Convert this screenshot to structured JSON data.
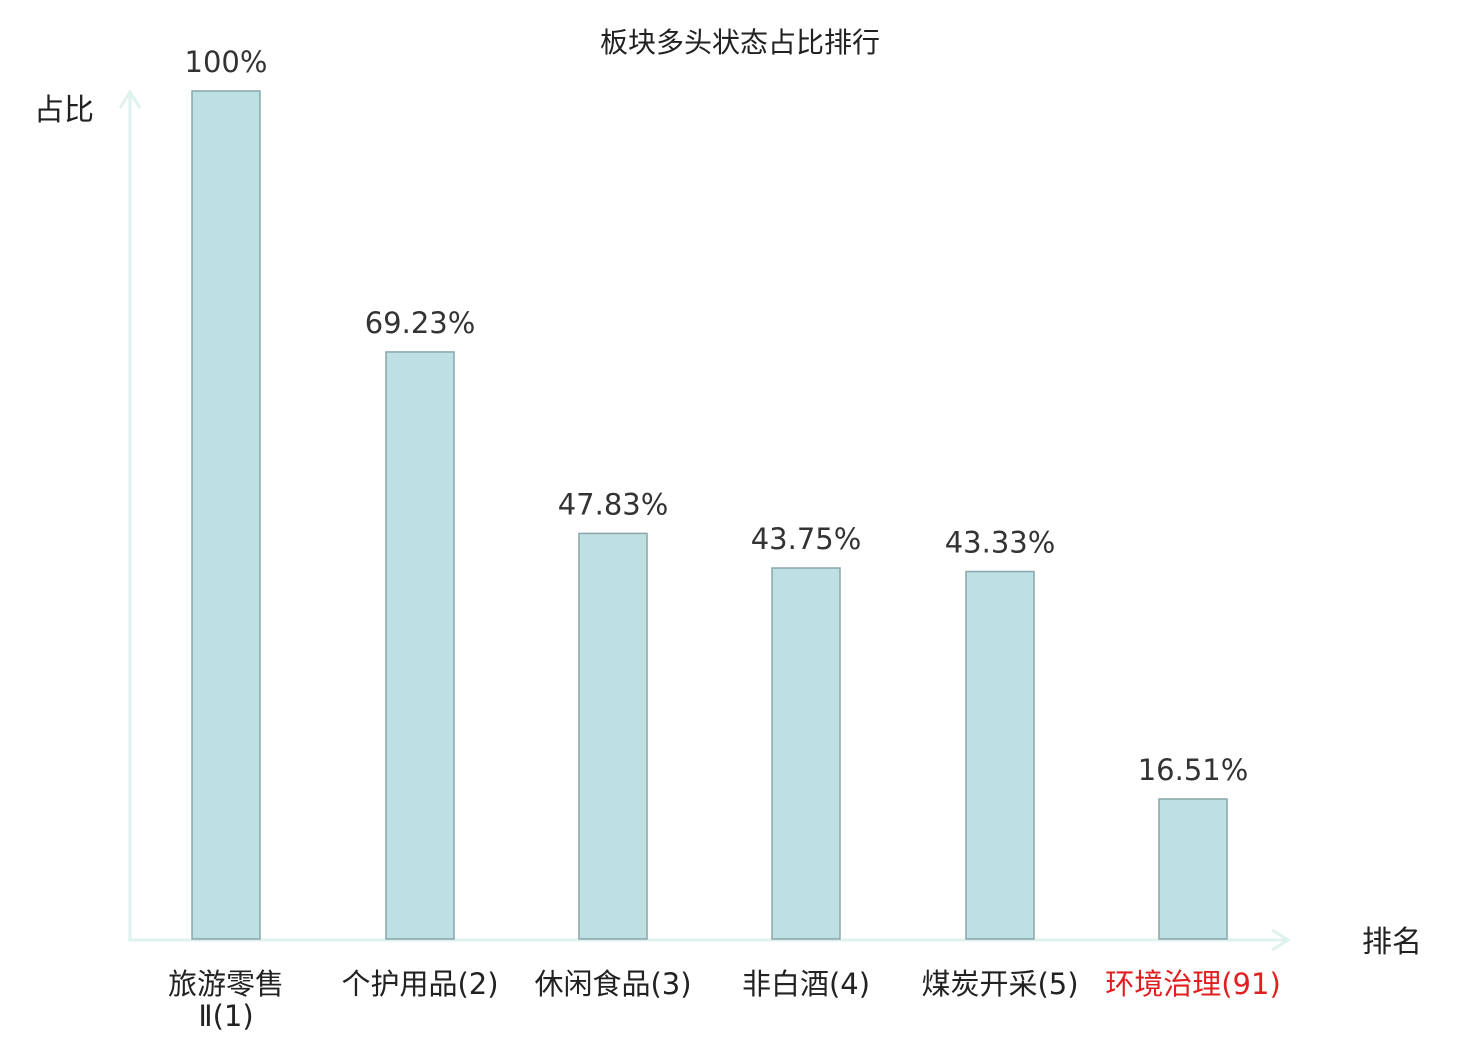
{
  "chart_data": {
    "type": "bar",
    "title": "板块多头状态占比排行",
    "ylabel": "占比",
    "xlabel": "排名",
    "ylim": [
      0,
      100
    ],
    "grid": false,
    "categories": [
      {
        "name": "旅游零售Ⅱ",
        "rank": "(1)",
        "lines": [
          "旅游零售",
          "Ⅱ(1)"
        ],
        "highlight": false
      },
      {
        "name": "个护用品",
        "rank": "(2)",
        "lines": [
          "个护用品(2)"
        ],
        "highlight": false
      },
      {
        "name": "休闲食品",
        "rank": "(3)",
        "lines": [
          "休闲食品(3)"
        ],
        "highlight": false
      },
      {
        "name": "非白酒",
        "rank": "(4)",
        "lines": [
          "非白酒(4)"
        ],
        "highlight": false
      },
      {
        "name": "煤炭开采",
        "rank": "(5)",
        "lines": [
          "煤炭开采(5)"
        ],
        "highlight": false
      },
      {
        "name": "环境治理",
        "rank": "(91)",
        "lines": [
          "环境治理(91)"
        ],
        "highlight": true
      }
    ],
    "values": [
      100,
      69.23,
      47.83,
      43.75,
      43.33,
      16.51
    ],
    "value_labels": [
      "100%",
      "69.23%",
      "47.83%",
      "43.75%",
      "43.33%",
      "16.51%"
    ],
    "colors": {
      "bar_fill": "#bde0e3",
      "bar_stroke": "#8aa6aa",
      "axis": "#dff2ef",
      "highlight_text": "#e02020",
      "text": "#222222"
    }
  }
}
